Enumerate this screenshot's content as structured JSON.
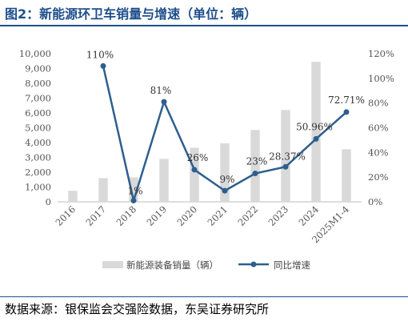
{
  "title": "图2：新能源环卫车销量与增速（单位：辆）",
  "source": "数据来源：银保监会交强险数据，东吴证券研究所",
  "colors": {
    "title": "#1f4e8c",
    "bar": "#d9d9d9",
    "line": "#2e5e8e"
  },
  "chart_data": {
    "type": "bar+line",
    "categories": [
      "2016",
      "2017",
      "2018",
      "2019",
      "2020",
      "2021",
      "2022",
      "2023",
      "2024",
      "2025M1-4"
    ],
    "series": [
      {
        "name": "新能源装备销量（辆）",
        "type": "bar",
        "axis": "left",
        "values": [
          750,
          1600,
          1650,
          2900,
          3650,
          3950,
          4850,
          6200,
          9450,
          3550
        ]
      },
      {
        "name": "同比增速",
        "type": "line",
        "axis": "right",
        "values": [
          null,
          110,
          1,
          81,
          26,
          9,
          23,
          28.37,
          50.96,
          72.71
        ],
        "labels": [
          "",
          "110%",
          "1%",
          "81%",
          "26%",
          "9%",
          "23%",
          "28.37%",
          "50.96%",
          "72.71%"
        ]
      }
    ],
    "y_left": {
      "min": 0,
      "max": 10000,
      "ticks": [
        "0",
        "1,000",
        "2,000",
        "3,000",
        "4,000",
        "5,000",
        "6,000",
        "7,000",
        "8,000",
        "9,000",
        "10,000"
      ]
    },
    "y_right": {
      "min": 0,
      "max": 120,
      "ticks": [
        "0%",
        "20%",
        "40%",
        "60%",
        "80%",
        "100%",
        "120%"
      ]
    },
    "grid": false,
    "legend_position": "bottom"
  }
}
